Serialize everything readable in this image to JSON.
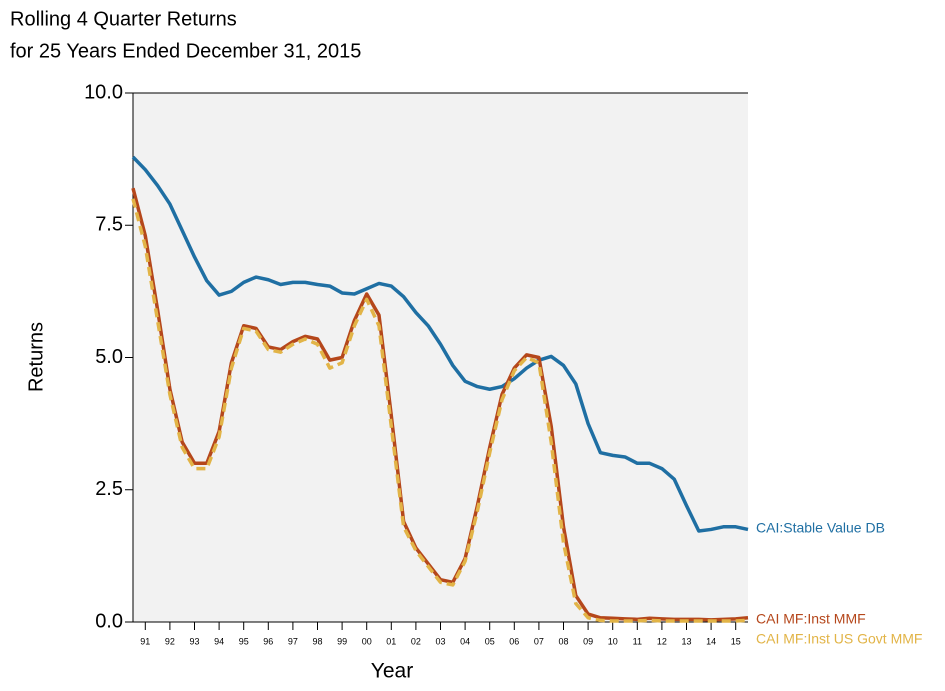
{
  "chart_data": {
    "type": "line",
    "title": "Rolling 4 Quarter Returns",
    "subtitle": "for 25 Years Ended December 31, 2015",
    "x_label": "Year",
    "y_label": "Returns",
    "xlim": [
      1991,
      2016
    ],
    "ylim": [
      0,
      10
    ],
    "yticks": [
      {
        "value": 0,
        "label": "0.0"
      },
      {
        "value": 2.5,
        "label": "2.5"
      },
      {
        "value": 5,
        "label": "5.0"
      },
      {
        "value": 7.5,
        "label": "7.5"
      },
      {
        "value": 10,
        "label": "10.0"
      }
    ],
    "xticks": [
      {
        "value": 1991.5,
        "label": "91"
      },
      {
        "value": 1992.5,
        "label": "92"
      },
      {
        "value": 1993.5,
        "label": "93"
      },
      {
        "value": 1994.5,
        "label": "94"
      },
      {
        "value": 1995.5,
        "label": "95"
      },
      {
        "value": 1996.5,
        "label": "96"
      },
      {
        "value": 1997.5,
        "label": "97"
      },
      {
        "value": 1998.5,
        "label": "98"
      },
      {
        "value": 1999.5,
        "label": "99"
      },
      {
        "value": 2000.5,
        "label": "00"
      },
      {
        "value": 2001.5,
        "label": "01"
      },
      {
        "value": 2002.5,
        "label": "02"
      },
      {
        "value": 2003.5,
        "label": "03"
      },
      {
        "value": 2004.5,
        "label": "04"
      },
      {
        "value": 2005.5,
        "label": "05"
      },
      {
        "value": 2006.5,
        "label": "06"
      },
      {
        "value": 2007.5,
        "label": "07"
      },
      {
        "value": 2008.5,
        "label": "08"
      },
      {
        "value": 2009.5,
        "label": "09"
      },
      {
        "value": 2010.5,
        "label": "10"
      },
      {
        "value": 2011.5,
        "label": "11"
      },
      {
        "value": 2012.5,
        "label": "12"
      },
      {
        "value": 2013.5,
        "label": "13"
      },
      {
        "value": 2014.5,
        "label": "14"
      },
      {
        "value": 2015.5,
        "label": "15"
      }
    ],
    "x": [
      1991,
      1991.5,
      1992,
      1992.5,
      1993,
      1993.5,
      1994,
      1994.5,
      1995,
      1995.5,
      1996,
      1996.5,
      1997,
      1997.5,
      1998,
      1998.5,
      1999,
      1999.5,
      2000,
      2000.5,
      2001,
      2001.5,
      2002,
      2002.5,
      2003,
      2003.5,
      2004,
      2004.5,
      2005,
      2005.5,
      2006,
      2006.5,
      2007,
      2007.5,
      2008,
      2008.5,
      2009,
      2009.5,
      2010,
      2010.5,
      2011,
      2011.5,
      2012,
      2012.5,
      2013,
      2013.5,
      2014,
      2014.5,
      2015,
      2015.5,
      2016
    ],
    "series": [
      {
        "name": "CAI:Stable Value DB",
        "color": "#1f6fa3",
        "dashed": false,
        "values": [
          8.79,
          8.55,
          8.25,
          7.9,
          7.4,
          6.9,
          6.45,
          6.18,
          6.25,
          6.42,
          6.52,
          6.47,
          6.38,
          6.42,
          6.42,
          6.38,
          6.35,
          6.22,
          6.2,
          6.3,
          6.4,
          6.35,
          6.15,
          5.85,
          5.6,
          5.25,
          4.85,
          4.55,
          4.45,
          4.4,
          4.45,
          4.6,
          4.8,
          4.95,
          5.02,
          4.85,
          4.5,
          3.75,
          3.2,
          3.15,
          3.12,
          3.0,
          3.0,
          2.9,
          2.7,
          2.2,
          1.72,
          1.75,
          1.8,
          1.8,
          1.75
        ]
      },
      {
        "name": "CAI MF:Inst MMF",
        "color": "#b5471b",
        "dashed": false,
        "values": [
          8.2,
          7.3,
          5.9,
          4.4,
          3.4,
          3.0,
          3.0,
          3.6,
          4.9,
          5.6,
          5.55,
          5.2,
          5.15,
          5.3,
          5.4,
          5.35,
          4.95,
          5.0,
          5.7,
          6.2,
          5.8,
          3.9,
          1.9,
          1.4,
          1.1,
          0.8,
          0.75,
          1.2,
          2.2,
          3.3,
          4.3,
          4.8,
          5.05,
          5.0,
          3.7,
          1.8,
          0.5,
          0.15,
          0.08,
          0.07,
          0.06,
          0.05,
          0.07,
          0.06,
          0.05,
          0.05,
          0.05,
          0.04,
          0.05,
          0.06,
          0.08
        ]
      },
      {
        "name": "CAI MF:Inst US Govt MMF",
        "color": "#e2b447",
        "dashed": true,
        "values": [
          8.0,
          7.1,
          5.7,
          4.3,
          3.3,
          2.9,
          2.9,
          3.5,
          4.8,
          5.55,
          5.5,
          5.15,
          5.1,
          5.25,
          5.35,
          5.25,
          4.8,
          4.9,
          5.6,
          6.1,
          5.6,
          3.7,
          1.8,
          1.35,
          1.05,
          0.75,
          0.7,
          1.15,
          2.1,
          3.2,
          4.2,
          4.75,
          5.0,
          4.9,
          3.4,
          1.5,
          0.35,
          0.08,
          0.03,
          0.02,
          0.02,
          0.02,
          0.03,
          0.02,
          0.02,
          0.02,
          0.02,
          0.02,
          0.02,
          0.02,
          0.03
        ]
      }
    ]
  }
}
